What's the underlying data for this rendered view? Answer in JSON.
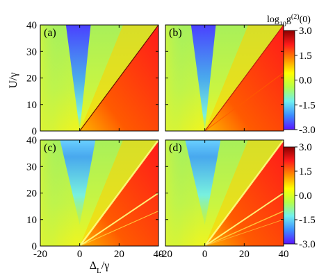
{
  "chart_data": {
    "type": "heatmap",
    "colorbar": {
      "label": "log10g(2)(0)",
      "label_base": "log",
      "label_sub": "10",
      "label_main": "g",
      "label_sup": "(2)",
      "label_tail": "(0)",
      "ticks": [
        "3.0",
        "1.5",
        "0.0",
        "-1.5",
        "-3.0"
      ],
      "range": [
        -3.0,
        3.0
      ],
      "colormap": [
        "#5a14ff",
        "#3c8cff",
        "#6ff0f0",
        "#b4ff4a",
        "#ffff00",
        "#ff8c00",
        "#ff1a1a",
        "#8a0000"
      ]
    },
    "xlabel": "ΔL/γ",
    "xlabel_main": "Δ",
    "xlabel_sub": "L",
    "xlabel_tail": "/γ",
    "ylabel": "U/γ",
    "xlim": [
      -20,
      40
    ],
    "ylim": [
      0,
      40
    ],
    "x_ticks": [
      -20,
      0,
      20,
      40
    ],
    "y_ticks": [
      0,
      10,
      20,
      30,
      40
    ],
    "panels": [
      {
        "label": "(a)",
        "lines": [
          {
            "slope": 1.0,
            "width": 1.2,
            "color": "#5a0000"
          }
        ]
      },
      {
        "label": "(b)",
        "lines": [
          {
            "slope": 1.0,
            "width": 1.2,
            "color": "#b01010"
          },
          {
            "slope": 0.55,
            "width": 1.0,
            "color": "#ff5a00"
          }
        ]
      },
      {
        "label": "(c)",
        "lines": [
          {
            "slope": 1.0,
            "width": 2.5,
            "color": "#ffff80"
          },
          {
            "slope": 0.5,
            "width": 2.0,
            "color": "#ffff80"
          },
          {
            "slope": 0.33,
            "width": 1.2,
            "color": "#ffd040"
          }
        ]
      },
      {
        "label": "(d)",
        "lines": [
          {
            "slope": 1.0,
            "width": 2.5,
            "color": "#ffff80"
          },
          {
            "slope": 0.5,
            "width": 2.0,
            "color": "#ffff80"
          },
          {
            "slope": 0.33,
            "width": 1.5,
            "color": "#ffd040"
          },
          {
            "slope": 0.25,
            "width": 1.0,
            "color": "#ffb030"
          }
        ]
      }
    ]
  }
}
